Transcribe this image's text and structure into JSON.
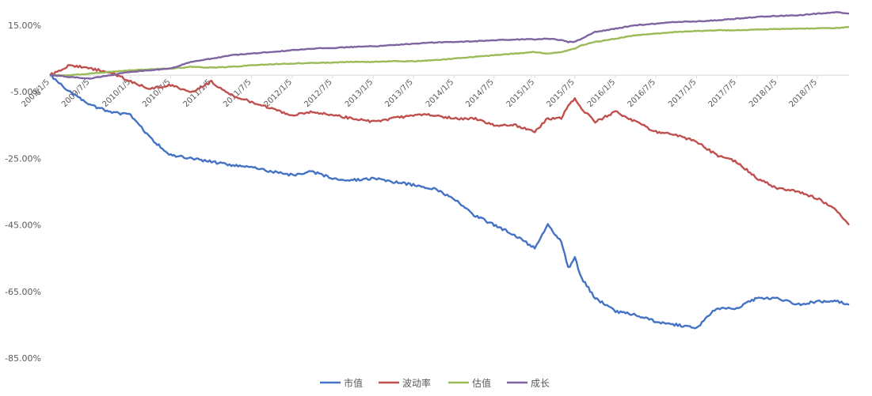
{
  "chart_data": {
    "type": "line",
    "title": "",
    "xlabel": "",
    "ylabel": "",
    "ylim": [
      -85,
      20
    ],
    "yticks": [
      15,
      -5,
      -25,
      -45,
      -65,
      -85
    ],
    "ytick_labels": [
      "15.00%",
      "-5.00%",
      "-25.00%",
      "-45.00%",
      "-65.00%",
      "-85.00%"
    ],
    "xtick_labels": [
      "2009/1/5",
      "2009/7/5",
      "2010/1/5",
      "2010/7/5",
      "2011/1/5",
      "2011/7/5",
      "2012/1/5",
      "2012/7/5",
      "2013/1/5",
      "2013/7/5",
      "2014/1/5",
      "2014/7/5",
      "2015/1/5",
      "2015/7/5",
      "2016/1/5",
      "2016/7/5",
      "2017/1/5",
      "2017/7/5",
      "2018/1/5",
      "2018/7/5"
    ],
    "grid": false,
    "legend_position": "bottom",
    "x_dates": [
      "2009/1/5",
      "2009/4/5",
      "2009/7/5",
      "2009/10/5",
      "2010/1/5",
      "2010/4/5",
      "2010/7/5",
      "2010/10/5",
      "2011/1/5",
      "2011/4/5",
      "2011/7/5",
      "2011/10/5",
      "2012/1/5",
      "2012/4/5",
      "2012/7/5",
      "2012/10/5",
      "2013/1/5",
      "2013/4/5",
      "2013/7/5",
      "2013/10/5",
      "2014/1/5",
      "2014/4/5",
      "2014/7/5",
      "2014/10/5",
      "2015/1/5",
      "2015/3/5",
      "2015/5/5",
      "2015/6/5",
      "2015/7/5",
      "2015/8/5",
      "2015/10/5",
      "2016/1/5",
      "2016/4/5",
      "2016/7/5",
      "2016/10/5",
      "2017/1/5",
      "2017/4/5",
      "2017/7/5",
      "2017/10/5",
      "2018/1/5",
      "2018/4/5",
      "2018/7/5",
      "2018/10/5",
      "2018/11/25"
    ],
    "series": [
      {
        "name": "市值",
        "color": "#4472C4",
        "values": [
          0,
          -5,
          -9,
          -11,
          -12,
          -19,
          -24,
          -25,
          -26,
          -27,
          -27.5,
          -29,
          -30,
          -29,
          -31,
          -31.5,
          -31,
          -32,
          -33,
          -34,
          -37,
          -42,
          -45,
          -48,
          -52,
          -45,
          -50,
          -58,
          -55,
          -61,
          -67,
          -71,
          -72,
          -74,
          -75,
          -76,
          -70,
          -70,
          -67,
          -67,
          -69,
          -68,
          -68,
          -69
        ]
      },
      {
        "name": "波动率",
        "color": "#C0504D",
        "values": [
          0,
          3,
          2,
          1,
          -2,
          -4,
          -3,
          -5,
          -2,
          -6,
          -8,
          -10,
          -12,
          -11,
          -12,
          -13,
          -14,
          -13,
          -12,
          -12,
          -13,
          -13,
          -15,
          -15,
          -17,
          -13,
          -13,
          -9,
          -7,
          -10,
          -14,
          -11,
          -14,
          -17,
          -18,
          -20,
          -24,
          -26,
          -31,
          -34,
          -35,
          -37,
          -41,
          -45
        ]
      },
      {
        "name": "估值",
        "color": "#9BBB59",
        "values": [
          0,
          0,
          0.5,
          1,
          1.5,
          1.8,
          2,
          2.5,
          2.3,
          2.5,
          3,
          3.3,
          3.5,
          3.7,
          3.8,
          4,
          4,
          4.2,
          4.2,
          4.5,
          5,
          5.5,
          6,
          6.5,
          7,
          6.5,
          7,
          7.5,
          8,
          9,
          10,
          11,
          12,
          12.5,
          13,
          13.3,
          13.5,
          13.5,
          13.7,
          13.9,
          14,
          14.1,
          14.2,
          14.5
        ]
      },
      {
        "name": "成长",
        "color": "#8064A2",
        "values": [
          0,
          -0.5,
          -1,
          0,
          1,
          1.5,
          2,
          4,
          5,
          6,
          6.5,
          7,
          7.5,
          8,
          8.2,
          8.5,
          8.7,
          9,
          9.5,
          9.8,
          10,
          10.2,
          10.5,
          10.7,
          10.8,
          11,
          10.5,
          10,
          10,
          11,
          13,
          14,
          15,
          15.5,
          16,
          16.2,
          16.5,
          17,
          17.5,
          17.8,
          18,
          18.5,
          19,
          18.5
        ]
      }
    ]
  }
}
